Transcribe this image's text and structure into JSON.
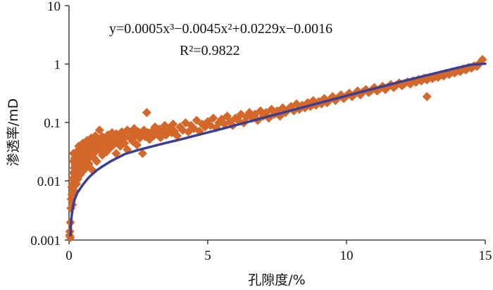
{
  "chart_data": {
    "type": "scatter",
    "x_scale": "linear",
    "y_scale": "log",
    "xlim": [
      0,
      15
    ],
    "ylim": [
      0.001,
      10
    ],
    "xlabel": "孔隙度/%",
    "ylabel": "渗透率/mD",
    "x_ticks": [
      "0",
      "5",
      "10",
      "15"
    ],
    "y_ticks": [
      "0.001",
      "0.01",
      "0.1",
      "1",
      "10"
    ],
    "annotations": {
      "equation": "y=0.0005x³−0.0045x²+0.0229x−0.0016",
      "r_squared": "R²=0.9822"
    },
    "series": [
      {
        "style": "markers",
        "color": "#D4672A",
        "marker": "diamond",
        "points": [
          [
            0.02,
            0.0012
          ],
          [
            0.03,
            0.0014
          ],
          [
            0.05,
            0.0011
          ],
          [
            0.05,
            0.002
          ],
          [
            0.07,
            0.0035
          ],
          [
            0.08,
            0.005
          ],
          [
            0.1,
            0.006
          ],
          [
            0.1,
            0.008
          ],
          [
            0.12,
            0.004
          ],
          [
            0.12,
            0.011
          ],
          [
            0.14,
            0.009
          ],
          [
            0.15,
            0.014
          ],
          [
            0.15,
            0.022
          ],
          [
            0.16,
            0.03
          ],
          [
            0.18,
            0.007
          ],
          [
            0.18,
            0.017
          ],
          [
            0.2,
            0.012
          ],
          [
            0.2,
            0.025
          ],
          [
            0.22,
            0.019
          ],
          [
            0.24,
            0.013
          ],
          [
            0.25,
            0.028
          ],
          [
            0.27,
            0.009
          ],
          [
            0.28,
            0.021
          ],
          [
            0.3,
            0.016
          ],
          [
            0.3,
            0.033
          ],
          [
            0.32,
            0.011
          ],
          [
            0.35,
            0.024
          ],
          [
            0.35,
            0.04
          ],
          [
            0.38,
            0.018
          ],
          [
            0.4,
            0.013
          ],
          [
            0.4,
            0.029
          ],
          [
            0.42,
            0.035
          ],
          [
            0.45,
            0.02
          ],
          [
            0.48,
            0.026
          ],
          [
            0.5,
            0.015
          ],
          [
            0.5,
            0.045
          ],
          [
            0.55,
            0.032
          ],
          [
            0.55,
            0.022
          ],
          [
            0.6,
            0.038
          ],
          [
            0.6,
            0.017
          ],
          [
            0.62,
            0.028
          ],
          [
            0.65,
            0.05
          ],
          [
            0.68,
            0.024
          ],
          [
            0.7,
            0.034
          ],
          [
            0.72,
            0.02
          ],
          [
            0.75,
            0.042
          ],
          [
            0.78,
            0.028
          ],
          [
            0.8,
            0.055
          ],
          [
            0.8,
            0.036
          ],
          [
            0.82,
            0.016
          ],
          [
            0.85,
            0.03
          ],
          [
            0.88,
            0.046
          ],
          [
            0.9,
            0.025
          ],
          [
            0.92,
            0.038
          ],
          [
            0.95,
            0.06
          ],
          [
            0.98,
            0.033
          ],
          [
            1.0,
            0.042
          ],
          [
            1.0,
            0.022
          ],
          [
            1.05,
            0.05
          ],
          [
            1.1,
            0.035
          ],
          [
            1.1,
            0.075
          ],
          [
            1.15,
            0.045
          ],
          [
            1.2,
            0.028
          ],
          [
            1.2,
            0.058
          ],
          [
            1.25,
            0.04
          ],
          [
            1.3,
            0.05
          ],
          [
            1.35,
            0.032
          ],
          [
            1.4,
            0.062
          ],
          [
            1.45,
            0.045
          ],
          [
            1.5,
            0.038
          ],
          [
            1.5,
            0.055
          ],
          [
            1.55,
            0.068
          ],
          [
            1.6,
            0.042
          ],
          [
            1.65,
            0.052
          ],
          [
            1.7,
            0.03
          ],
          [
            1.7,
            0.065
          ],
          [
            1.75,
            0.048
          ],
          [
            1.8,
            0.058
          ],
          [
            1.85,
            0.04
          ],
          [
            1.9,
            0.07
          ],
          [
            1.95,
            0.052
          ],
          [
            2.0,
            0.045
          ],
          [
            2.0,
            0.06
          ],
          [
            2.1,
            0.075
          ],
          [
            2.1,
            0.035
          ],
          [
            2.2,
            0.055
          ],
          [
            2.25,
            0.066
          ],
          [
            2.3,
            0.048
          ],
          [
            2.35,
            0.08
          ],
          [
            2.4,
            0.06
          ],
          [
            2.45,
            0.042
          ],
          [
            2.5,
            0.07
          ],
          [
            2.55,
            0.055
          ],
          [
            2.6,
            0.065
          ],
          [
            2.65,
            0.03
          ],
          [
            2.7,
            0.075
          ],
          [
            2.75,
            0.058
          ],
          [
            2.8,
            0.15
          ],
          [
            2.85,
            0.068
          ],
          [
            2.9,
            0.052
          ],
          [
            3.0,
            0.072
          ],
          [
            3.05,
            0.06
          ],
          [
            3.1,
            0.085
          ],
          [
            3.2,
            0.065
          ],
          [
            3.25,
            0.078
          ],
          [
            3.3,
            0.056
          ],
          [
            3.4,
            0.07
          ],
          [
            3.45,
            0.09
          ],
          [
            3.5,
            0.062
          ],
          [
            3.6,
            0.08
          ],
          [
            3.7,
            0.068
          ],
          [
            3.75,
            0.095
          ],
          [
            3.8,
            0.072
          ],
          [
            3.9,
            0.06
          ],
          [
            4.0,
            0.085
          ],
          [
            4.1,
            0.075
          ],
          [
            4.2,
            0.1
          ],
          [
            4.3,
            0.07
          ],
          [
            4.4,
            0.09
          ],
          [
            4.5,
            0.08
          ],
          [
            4.6,
            0.11
          ],
          [
            4.7,
            0.072
          ],
          [
            4.8,
            0.095
          ],
          [
            4.9,
            0.085
          ],
          [
            5.0,
            0.105
          ],
          [
            5.1,
            0.09
          ],
          [
            5.2,
            0.12
          ],
          [
            5.3,
            0.082
          ],
          [
            5.4,
            0.1
          ],
          [
            5.5,
            0.115
          ],
          [
            5.6,
            0.095
          ],
          [
            5.7,
            0.13
          ],
          [
            5.8,
            0.105
          ],
          [
            5.9,
            0.09
          ],
          [
            6.0,
            0.12
          ],
          [
            6.1,
            0.11
          ],
          [
            6.2,
            0.14
          ],
          [
            6.3,
            0.1
          ],
          [
            6.4,
            0.125
          ],
          [
            6.5,
            0.15
          ],
          [
            6.6,
            0.12
          ],
          [
            6.7,
            0.14
          ],
          [
            6.8,
            0.11
          ],
          [
            6.9,
            0.16
          ],
          [
            7.0,
            0.13
          ],
          [
            7.1,
            0.15
          ],
          [
            7.2,
            0.12
          ],
          [
            7.3,
            0.17
          ],
          [
            7.4,
            0.14
          ],
          [
            7.5,
            0.16
          ],
          [
            7.6,
            0.13
          ],
          [
            7.7,
            0.18
          ],
          [
            7.8,
            0.15
          ],
          [
            7.9,
            0.17
          ],
          [
            8.0,
            0.19
          ],
          [
            8.1,
            0.16
          ],
          [
            8.2,
            0.21
          ],
          [
            8.3,
            0.17
          ],
          [
            8.4,
            0.2
          ],
          [
            8.5,
            0.18
          ],
          [
            8.6,
            0.22
          ],
          [
            8.7,
            0.19
          ],
          [
            8.8,
            0.24
          ],
          [
            8.9,
            0.2
          ],
          [
            9.0,
            0.23
          ],
          [
            9.1,
            0.21
          ],
          [
            9.2,
            0.26
          ],
          [
            9.3,
            0.22
          ],
          [
            9.4,
            0.25
          ],
          [
            9.5,
            0.28
          ],
          [
            9.6,
            0.24
          ],
          [
            9.7,
            0.27
          ],
          [
            9.8,
            0.3
          ],
          [
            9.9,
            0.26
          ],
          [
            10.0,
            0.29
          ],
          [
            10.1,
            0.32
          ],
          [
            10.2,
            0.28
          ],
          [
            10.3,
            0.31
          ],
          [
            10.4,
            0.35
          ],
          [
            10.5,
            0.3
          ],
          [
            10.6,
            0.34
          ],
          [
            10.7,
            0.37
          ],
          [
            10.8,
            0.33
          ],
          [
            10.9,
            0.36
          ],
          [
            11.0,
            0.4
          ],
          [
            11.1,
            0.35
          ],
          [
            11.2,
            0.38
          ],
          [
            11.3,
            0.42
          ],
          [
            11.4,
            0.37
          ],
          [
            11.5,
            0.41
          ],
          [
            11.6,
            0.45
          ],
          [
            11.7,
            0.4
          ],
          [
            11.8,
            0.44
          ],
          [
            11.9,
            0.48
          ],
          [
            12.0,
            0.43
          ],
          [
            12.1,
            0.47
          ],
          [
            12.2,
            0.5
          ],
          [
            12.3,
            0.46
          ],
          [
            12.4,
            0.52
          ],
          [
            12.5,
            0.49
          ],
          [
            12.6,
            0.55
          ],
          [
            12.7,
            0.52
          ],
          [
            12.8,
            0.58
          ],
          [
            12.9,
            0.54
          ],
          [
            12.9,
            0.28
          ],
          [
            13.0,
            0.6
          ],
          [
            13.1,
            0.57
          ],
          [
            13.2,
            0.62
          ],
          [
            13.3,
            0.6
          ],
          [
            13.4,
            0.66
          ],
          [
            13.5,
            0.63
          ],
          [
            13.6,
            0.7
          ],
          [
            13.7,
            0.67
          ],
          [
            13.8,
            0.74
          ],
          [
            13.9,
            0.71
          ],
          [
            14.0,
            0.78
          ],
          [
            14.1,
            0.75
          ],
          [
            14.2,
            0.83
          ],
          [
            14.3,
            0.8
          ],
          [
            14.4,
            0.88
          ],
          [
            14.5,
            0.86
          ],
          [
            14.6,
            0.94
          ],
          [
            14.7,
            0.92
          ],
          [
            14.8,
            1.05
          ],
          [
            14.9,
            1.2
          ]
        ]
      },
      {
        "style": "line",
        "color": "#3A3F95",
        "points": [
          [
            0.05,
            0.0012
          ],
          [
            0.08,
            0.0022
          ],
          [
            0.1,
            0.0027
          ],
          [
            0.15,
            0.0039
          ],
          [
            0.2,
            0.0049
          ],
          [
            0.3,
            0.0064
          ],
          [
            0.4,
            0.0075
          ],
          [
            0.5,
            0.0088
          ],
          [
            0.6,
            0.0101
          ],
          [
            0.7,
            0.0115
          ],
          [
            0.8,
            0.0128
          ],
          [
            1.0,
            0.0155
          ],
          [
            1.2,
            0.018
          ],
          [
            1.5,
            0.022
          ],
          [
            2.0,
            0.0292
          ],
          [
            2.5,
            0.0344
          ],
          [
            3.0,
            0.0397
          ],
          [
            3.5,
            0.0455
          ],
          [
            4.0,
            0.0518
          ],
          [
            4.5,
            0.0597
          ],
          [
            5.0,
            0.0684
          ],
          [
            5.5,
            0.0787
          ],
          [
            6.0,
            0.0908
          ],
          [
            6.5,
            0.1052
          ],
          [
            7.0,
            0.1216
          ],
          [
            7.5,
            0.1407
          ],
          [
            8.0,
            0.1624
          ],
          [
            8.5,
            0.1878
          ],
          [
            9.0,
            0.2171
          ],
          [
            9.5,
            0.2507
          ],
          [
            10.0,
            0.2894
          ],
          [
            10.5,
            0.3341
          ],
          [
            11.0,
            0.3843
          ],
          [
            11.5,
            0.4422
          ],
          [
            12.0,
            0.5082
          ],
          [
            12.5,
            0.5826
          ],
          [
            13.0,
            0.6664
          ],
          [
            13.5,
            0.7613
          ],
          [
            14.0,
            0.8676
          ],
          [
            14.5,
            0.9863
          ],
          [
            15.0,
            1.02
          ]
        ]
      }
    ]
  }
}
